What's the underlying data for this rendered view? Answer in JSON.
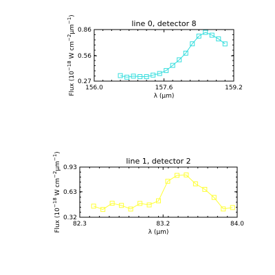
{
  "chart_data": [
    {
      "type": "line",
      "title": "line 0, detector 8",
      "xlabel_text": "λ (μm)",
      "ylabel": {
        "base": "Flux (10",
        "exp1": "−18",
        "mid": " W cm",
        "exp2": "−2",
        "mid2": "μm",
        "exp3": "−1",
        "end": ")"
      },
      "xlim": [
        156.0,
        159.2
      ],
      "ylim": [
        0.27,
        0.86
      ],
      "xticks": [
        "156.0",
        "157.6",
        "159.2"
      ],
      "yticks": [
        "0.27",
        "0.56",
        "0.86"
      ],
      "color": "#33dddd",
      "series": [
        {
          "x": [
            156.6,
            156.75,
            156.9,
            157.05,
            157.2,
            157.35,
            157.5,
            157.65,
            157.8,
            157.95,
            158.1,
            158.25,
            158.4,
            158.55,
            158.7,
            158.85,
            159.0
          ],
          "y": [
            0.333,
            0.315,
            0.327,
            0.321,
            0.321,
            0.339,
            0.357,
            0.391,
            0.45,
            0.514,
            0.59,
            0.697,
            0.785,
            0.828,
            0.796,
            0.753,
            0.696
          ]
        }
      ]
    },
    {
      "type": "line",
      "title": "line 1, detector 2",
      "xlabel_text": "λ (μm)",
      "ylabel": {
        "base": "Flux (10",
        "exp1": "−18",
        "mid": " W cm",
        "exp2": "−2",
        "mid2": "μm",
        "exp3": "−1",
        "end": ")"
      },
      "xlim": [
        82.3,
        84.0
      ],
      "ylim": [
        0.32,
        0.93
      ],
      "xticks": [
        "82.3",
        "83.2",
        "84.0"
      ],
      "yticks": [
        "0.32",
        "0.63",
        "0.93"
      ],
      "color": "#ffff33",
      "series": [
        {
          "x": [
            82.45,
            82.55,
            82.65,
            82.75,
            82.85,
            82.95,
            83.05,
            83.15,
            83.25,
            83.35,
            83.45,
            83.55,
            83.65,
            83.75,
            83.85,
            83.95
          ],
          "y": [
            0.455,
            0.415,
            0.49,
            0.464,
            0.42,
            0.488,
            0.47,
            0.52,
            0.757,
            0.829,
            0.834,
            0.726,
            0.659,
            0.561,
            0.421,
            0.438
          ]
        }
      ]
    }
  ]
}
